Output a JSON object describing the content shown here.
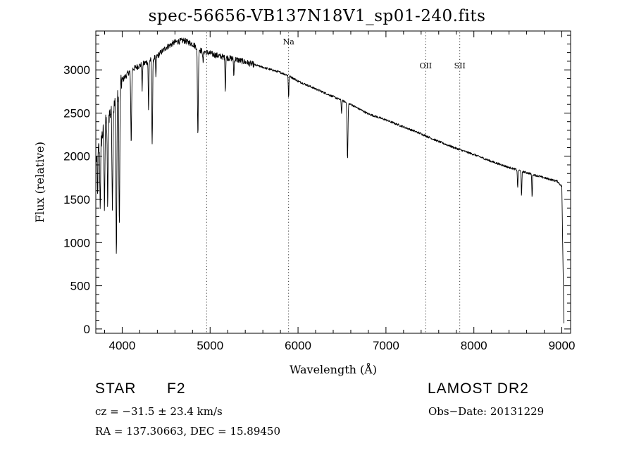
{
  "chart_data": {
    "type": "line",
    "title": "spec-56656-VB137N18V1_sp01-240.fits",
    "xlabel": "Wavelength (Å)",
    "ylabel": "Flux (relative)",
    "xlim": [
      3700,
      9100
    ],
    "ylim": [
      -50,
      3450
    ],
    "x_ticks": [
      4000,
      5000,
      6000,
      7000,
      8000,
      9000
    ],
    "y_ticks": [
      0,
      500,
      1000,
      1500,
      2000,
      2500,
      3000
    ],
    "grid": false,
    "line_markers": [
      {
        "label": "",
        "wavelength": 4960
      },
      {
        "label": "Na",
        "wavelength": 5893
      },
      {
        "label": "OII",
        "wavelength": 7452
      },
      {
        "label": "SII",
        "wavelength": 7840
      }
    ],
    "continuum": [
      [
        3700,
        1950
      ],
      [
        3750,
        2150
      ],
      [
        3800,
        2350
      ],
      [
        3850,
        2480
      ],
      [
        3900,
        2550
      ],
      [
        3950,
        2700
      ],
      [
        4000,
        2880
      ],
      [
        4100,
        3000
      ],
      [
        4200,
        3050
      ],
      [
        4300,
        3100
      ],
      [
        4400,
        3160
      ],
      [
        4500,
        3260
      ],
      [
        4600,
        3320
      ],
      [
        4700,
        3340
      ],
      [
        4800,
        3300
      ],
      [
        4900,
        3220
      ],
      [
        5000,
        3190
      ],
      [
        5100,
        3160
      ],
      [
        5200,
        3140
      ],
      [
        5300,
        3120
      ],
      [
        5400,
        3090
      ],
      [
        5500,
        3060
      ],
      [
        5600,
        3030
      ],
      [
        5700,
        3000
      ],
      [
        5800,
        2970
      ],
      [
        5900,
        2930
      ],
      [
        6000,
        2870
      ],
      [
        6200,
        2780
      ],
      [
        6400,
        2690
      ],
      [
        6600,
        2600
      ],
      [
        6800,
        2490
      ],
      [
        7000,
        2420
      ],
      [
        7200,
        2340
      ],
      [
        7400,
        2260
      ],
      [
        7600,
        2170
      ],
      [
        7800,
        2090
      ],
      [
        8000,
        2020
      ],
      [
        8200,
        1940
      ],
      [
        8400,
        1870
      ],
      [
        8600,
        1810
      ],
      [
        8800,
        1750
      ],
      [
        8950,
        1710
      ],
      [
        9000,
        1650
      ],
      [
        9020,
        0
      ]
    ],
    "absorption_lines": [
      {
        "wavelength": 3720,
        "depth": 500
      },
      {
        "wavelength": 3750,
        "depth": 700
      },
      {
        "wavelength": 3798,
        "depth": 900
      },
      {
        "wavelength": 3835,
        "depth": 1000
      },
      {
        "wavelength": 3889,
        "depth": 1100
      },
      {
        "wavelength": 3934,
        "depth": 1800
      },
      {
        "wavelength": 3968,
        "depth": 1600
      },
      {
        "wavelength": 4102,
        "depth": 850
      },
      {
        "wavelength": 4227,
        "depth": 300
      },
      {
        "wavelength": 4300,
        "depth": 600
      },
      {
        "wavelength": 4341,
        "depth": 950
      },
      {
        "wavelength": 4383,
        "depth": 250
      },
      {
        "wavelength": 4861,
        "depth": 1000
      },
      {
        "wavelength": 4920,
        "depth": 150
      },
      {
        "wavelength": 5173,
        "depth": 400
      },
      {
        "wavelength": 5270,
        "depth": 200
      },
      {
        "wavelength": 5893,
        "depth": 250
      },
      {
        "wavelength": 6495,
        "depth": 150
      },
      {
        "wavelength": 6563,
        "depth": 650
      },
      {
        "wavelength": 8498,
        "depth": 200
      },
      {
        "wavelength": 8542,
        "depth": 300
      },
      {
        "wavelength": 8662,
        "depth": 260
      }
    ]
  },
  "info": {
    "object_class": "STAR",
    "subclass": "F2",
    "survey": "LAMOST DR2",
    "cz": "cz = −31.5 ± 23.4 km/s",
    "obs_date": "Obs−Date: 20131229",
    "coords": "RA = 137.30663, DEC =  15.89450"
  }
}
